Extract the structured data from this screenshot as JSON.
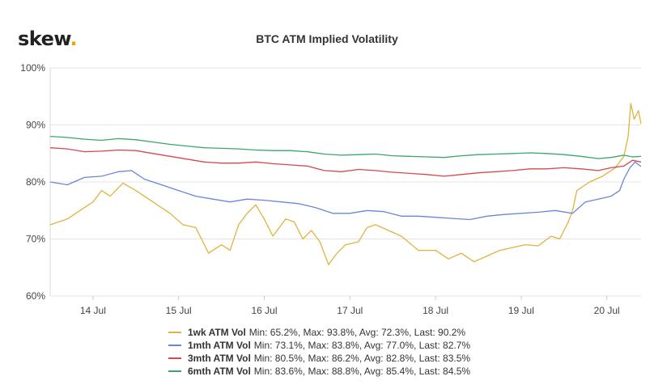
{
  "brand": {
    "name": "skew",
    "dot": "."
  },
  "chart_data": {
    "type": "line",
    "title": "BTC ATM Implied Volatility",
    "xlabel": "",
    "ylabel": "",
    "x_ticks": [
      "14 Jul",
      "15 Jul",
      "16 Jul",
      "17 Jul",
      "18 Jul",
      "19 Jul",
      "20 Jul"
    ],
    "x_range_days": [
      13.5,
      20.4
    ],
    "y_ticks": [
      "60%",
      "70%",
      "80%",
      "90%",
      "100%"
    ],
    "ylim": [
      60,
      100
    ],
    "grid": "horizontal",
    "legend_placement": "bottom",
    "series": [
      {
        "name": "1wk ATM Vol",
        "stats": "Min: 65.2%, Max: 93.8%, Avg: 72.3%, Last: 90.2%",
        "color": "#e0b341",
        "points": [
          [
            13.5,
            72.5
          ],
          [
            13.7,
            73.5
          ],
          [
            13.9,
            75.5
          ],
          [
            14.0,
            76.5
          ],
          [
            14.1,
            78.5
          ],
          [
            14.2,
            77.5
          ],
          [
            14.35,
            79.8
          ],
          [
            14.5,
            78.5
          ],
          [
            14.7,
            76.5
          ],
          [
            14.9,
            74.5
          ],
          [
            15.05,
            72.5
          ],
          [
            15.2,
            72.0
          ],
          [
            15.35,
            67.5
          ],
          [
            15.5,
            69.0
          ],
          [
            15.6,
            68.0
          ],
          [
            15.7,
            72.5
          ],
          [
            15.8,
            74.5
          ],
          [
            15.9,
            76.0
          ],
          [
            16.0,
            73.5
          ],
          [
            16.1,
            70.5
          ],
          [
            16.25,
            73.5
          ],
          [
            16.35,
            73.0
          ],
          [
            16.45,
            70.0
          ],
          [
            16.55,
            71.5
          ],
          [
            16.65,
            69.5
          ],
          [
            16.75,
            65.5
          ],
          [
            16.85,
            67.5
          ],
          [
            16.95,
            69.0
          ],
          [
            17.1,
            69.5
          ],
          [
            17.2,
            72.0
          ],
          [
            17.3,
            72.5
          ],
          [
            17.45,
            71.5
          ],
          [
            17.6,
            70.5
          ],
          [
            17.8,
            68.0
          ],
          [
            18.0,
            68.0
          ],
          [
            18.15,
            66.5
          ],
          [
            18.3,
            67.5
          ],
          [
            18.45,
            66.0
          ],
          [
            18.6,
            67.0
          ],
          [
            18.75,
            68.0
          ],
          [
            18.9,
            68.5
          ],
          [
            19.05,
            69.0
          ],
          [
            19.2,
            68.8
          ],
          [
            19.35,
            70.5
          ],
          [
            19.45,
            70.0
          ],
          [
            19.55,
            73.0
          ],
          [
            19.6,
            75.0
          ],
          [
            19.65,
            78.5
          ],
          [
            19.8,
            80.0
          ],
          [
            19.95,
            81.0
          ],
          [
            20.1,
            82.5
          ],
          [
            20.2,
            84.5
          ],
          [
            20.25,
            88.0
          ],
          [
            20.28,
            93.8
          ],
          [
            20.32,
            91.0
          ],
          [
            20.37,
            92.5
          ],
          [
            20.4,
            90.2
          ]
        ]
      },
      {
        "name": "1mth ATM Vol",
        "stats": "Min: 73.1%, Max: 83.8%, Avg: 77.0%, Last: 82.7%",
        "color": "#6b86d8",
        "points": [
          [
            13.5,
            80.0
          ],
          [
            13.7,
            79.5
          ],
          [
            13.9,
            80.8
          ],
          [
            14.1,
            81.0
          ],
          [
            14.3,
            81.8
          ],
          [
            14.45,
            82.0
          ],
          [
            14.6,
            80.5
          ],
          [
            14.8,
            79.5
          ],
          [
            15.0,
            78.5
          ],
          [
            15.2,
            77.5
          ],
          [
            15.4,
            77.0
          ],
          [
            15.6,
            76.5
          ],
          [
            15.8,
            77.0
          ],
          [
            16.0,
            76.8
          ],
          [
            16.2,
            76.5
          ],
          [
            16.4,
            76.2
          ],
          [
            16.6,
            75.5
          ],
          [
            16.8,
            74.5
          ],
          [
            17.0,
            74.5
          ],
          [
            17.2,
            75.0
          ],
          [
            17.4,
            74.8
          ],
          [
            17.6,
            74.0
          ],
          [
            17.8,
            74.0
          ],
          [
            18.0,
            73.8
          ],
          [
            18.2,
            73.6
          ],
          [
            18.4,
            73.4
          ],
          [
            18.6,
            74.0
          ],
          [
            18.8,
            74.3
          ],
          [
            19.0,
            74.5
          ],
          [
            19.2,
            74.7
          ],
          [
            19.4,
            75.0
          ],
          [
            19.6,
            74.5
          ],
          [
            19.75,
            76.5
          ],
          [
            19.9,
            77.0
          ],
          [
            20.05,
            77.5
          ],
          [
            20.15,
            78.5
          ],
          [
            20.2,
            80.5
          ],
          [
            20.27,
            82.5
          ],
          [
            20.33,
            83.5
          ],
          [
            20.4,
            82.7
          ]
        ]
      },
      {
        "name": "3mth ATM Vol",
        "stats": "Min: 80.5%, Max: 86.2%, Avg: 82.8%, Last: 83.5%",
        "color": "#d9474f",
        "points": [
          [
            13.5,
            86.0
          ],
          [
            13.7,
            85.8
          ],
          [
            13.9,
            85.3
          ],
          [
            14.1,
            85.4
          ],
          [
            14.3,
            85.6
          ],
          [
            14.5,
            85.5
          ],
          [
            14.7,
            85.0
          ],
          [
            14.9,
            84.5
          ],
          [
            15.1,
            84.0
          ],
          [
            15.3,
            83.5
          ],
          [
            15.5,
            83.3
          ],
          [
            15.7,
            83.3
          ],
          [
            15.9,
            83.5
          ],
          [
            16.1,
            83.2
          ],
          [
            16.3,
            83.0
          ],
          [
            16.5,
            82.8
          ],
          [
            16.7,
            82.0
          ],
          [
            16.9,
            81.8
          ],
          [
            17.1,
            82.2
          ],
          [
            17.3,
            82.0
          ],
          [
            17.5,
            81.7
          ],
          [
            17.7,
            81.5
          ],
          [
            17.9,
            81.3
          ],
          [
            18.1,
            81.0
          ],
          [
            18.3,
            81.3
          ],
          [
            18.5,
            81.6
          ],
          [
            18.7,
            81.8
          ],
          [
            18.9,
            82.0
          ],
          [
            19.1,
            82.3
          ],
          [
            19.3,
            82.3
          ],
          [
            19.5,
            82.5
          ],
          [
            19.7,
            82.3
          ],
          [
            19.9,
            82.0
          ],
          [
            20.05,
            82.5
          ],
          [
            20.2,
            82.8
          ],
          [
            20.3,
            83.8
          ],
          [
            20.4,
            83.5
          ]
        ]
      },
      {
        "name": "6mth ATM Vol",
        "stats": "Min: 83.6%, Max: 88.8%, Avg: 85.4%, Last: 84.5%",
        "color": "#3aa66b",
        "points": [
          [
            13.5,
            88.0
          ],
          [
            13.7,
            87.8
          ],
          [
            13.9,
            87.5
          ],
          [
            14.1,
            87.3
          ],
          [
            14.3,
            87.6
          ],
          [
            14.5,
            87.4
          ],
          [
            14.7,
            87.0
          ],
          [
            14.9,
            86.6
          ],
          [
            15.1,
            86.3
          ],
          [
            15.3,
            86.0
          ],
          [
            15.5,
            85.9
          ],
          [
            15.7,
            85.8
          ],
          [
            15.9,
            85.6
          ],
          [
            16.1,
            85.5
          ],
          [
            16.3,
            85.5
          ],
          [
            16.5,
            85.3
          ],
          [
            16.7,
            84.9
          ],
          [
            16.9,
            84.7
          ],
          [
            17.1,
            84.8
          ],
          [
            17.3,
            84.9
          ],
          [
            17.5,
            84.6
          ],
          [
            17.7,
            84.5
          ],
          [
            17.9,
            84.4
          ],
          [
            18.1,
            84.3
          ],
          [
            18.3,
            84.6
          ],
          [
            18.5,
            84.8
          ],
          [
            18.7,
            84.9
          ],
          [
            18.9,
            85.0
          ],
          [
            19.1,
            85.1
          ],
          [
            19.3,
            85.0
          ],
          [
            19.5,
            84.8
          ],
          [
            19.7,
            84.5
          ],
          [
            19.9,
            84.1
          ],
          [
            20.05,
            84.3
          ],
          [
            20.2,
            84.7
          ],
          [
            20.3,
            84.4
          ],
          [
            20.4,
            84.5
          ]
        ]
      }
    ]
  }
}
